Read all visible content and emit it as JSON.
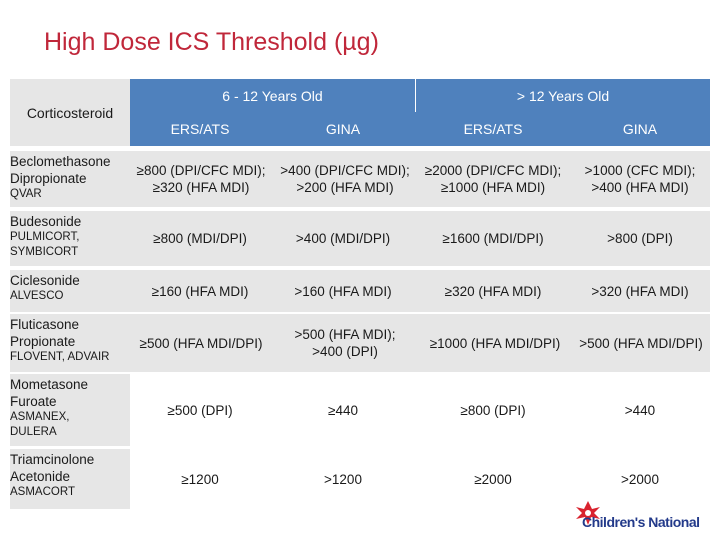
{
  "title": "High Dose ICS Threshold (µg)",
  "header": {
    "corticosteroid": "Corticosteroid",
    "group1": "6 - 12 Years Old",
    "group2": "> 12 Years Old",
    "sub1": "ERS/ATS",
    "sub2": "GINA",
    "sub3": "ERS/ATS",
    "sub4": "GINA"
  },
  "rows": [
    {
      "drug": "Beclomethasone Dipropionate",
      "brand": "QVAR",
      "c1": "≥800 (DPI/CFC MDI); ≥320 (HFA MDI)",
      "c2_prefix": ">",
      "c2": "400 (DPI/CFC MDI); >200 (HFA MDI)",
      "c3": "≥2000 (DPI/CFC MDI); ≥1000 (HFA MDI)",
      "c4_prefix": ">",
      "c4": "1000 (CFC MDI); >400 (HFA MDI)"
    },
    {
      "drug": "Budesonide",
      "brand": "PULMICORT, SYMBICORT",
      "c1": "≥800 (MDI/DPI)",
      "c2": ">400 (MDI/DPI)",
      "c3": "≥1600 (MDI/DPI)",
      "c4": ">800 (DPI)"
    },
    {
      "drug": "Ciclesonide",
      "brand": "ALVESCO",
      "c1": "≥160 (HFA MDI)",
      "c2": ">160 (HFA MDI)",
      "c3": "≥320 (HFA MDI)",
      "c4": ">320 (HFA MDI)"
    },
    {
      "drug": "Fluticasone Propionate",
      "brand": "FLOVENT, ADVAIR",
      "c1": "≥500 (HFA MDI/DPI)",
      "c2": ">500 (HFA MDI); >400 (DPI)",
      "c3": "≥1000 (HFA MDI/DPI)",
      "c4": ">500 (HFA MDI/DPI)"
    },
    {
      "drug": "Mometasone Furoate",
      "brand": "ASMANEX, DULERA",
      "c1": "≥500 (DPI)",
      "c2": "≥440",
      "c3": "≥800 (DPI)",
      "c4": ">440"
    },
    {
      "drug": "Triamcinolone Acetonide",
      "brand": "ASMACORT",
      "c1": "≥1200",
      "c2": ">1200",
      "c3": "≥2000",
      "c4": ">2000"
    }
  ],
  "logo": "Children's National",
  "colors": {
    "title": "#c0273a",
    "header": "#4f81bd",
    "cell": "#e6e6e6",
    "logo": "#233a8a",
    "logo_accent": "#d9232f"
  }
}
